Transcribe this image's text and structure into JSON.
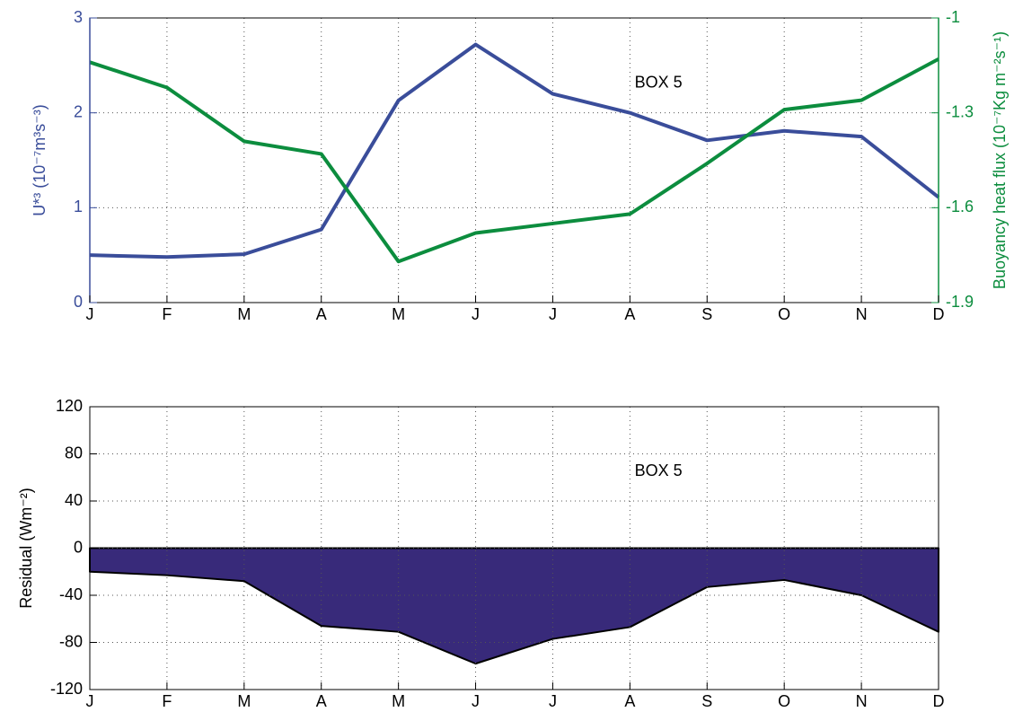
{
  "chart_data": [
    {
      "type": "line",
      "annotation": "BOX 5",
      "y_label": "U*³ (10⁻⁷m³s⁻³)",
      "y2_label": "Buoyancy heat flux (10⁻⁷Kg m⁻²s⁻¹)",
      "categories": [
        "J",
        "F",
        "M",
        "A",
        "M",
        "J",
        "J",
        "A",
        "S",
        "O",
        "N",
        "D"
      ],
      "series": [
        {
          "color": "#3a4d9a",
          "values": [
            0.5,
            0.48,
            0.51,
            0.77,
            2.13,
            2.72,
            2.2,
            2.0,
            1.71,
            1.81,
            1.75,
            1.11
          ]
        },
        {
          "color": "#0c8d3e",
          "axis": "y2",
          "values": [
            -1.14,
            -1.22,
            -1.39,
            -1.43,
            -1.77,
            -1.68,
            -1.65,
            -1.62,
            -1.46,
            -1.29,
            -1.26,
            -1.13
          ]
        }
      ],
      "ylim": [
        0,
        3
      ],
      "yticks": [
        0,
        1,
        2,
        3
      ],
      "y2lim": [
        -1.9,
        -1
      ],
      "y2ticks": [
        -1.9,
        -1.6,
        -1.3,
        -1
      ],
      "grid": true
    },
    {
      "type": "area",
      "annotation": "BOX 5",
      "y_label": "Residual (Wm⁻²)",
      "categories": [
        "J",
        "F",
        "M",
        "A",
        "M",
        "J",
        "J",
        "A",
        "S",
        "O",
        "N",
        "D"
      ],
      "color": "#382a7a",
      "values": [
        -20,
        -23,
        -28,
        -66,
        -71,
        -98,
        -77,
        -67,
        -33,
        -27,
        -40,
        -71
      ],
      "ylim": [
        -120,
        120
      ],
      "yticks": [
        -120,
        -80,
        -40,
        0,
        40,
        80,
        120
      ],
      "grid": true
    }
  ]
}
